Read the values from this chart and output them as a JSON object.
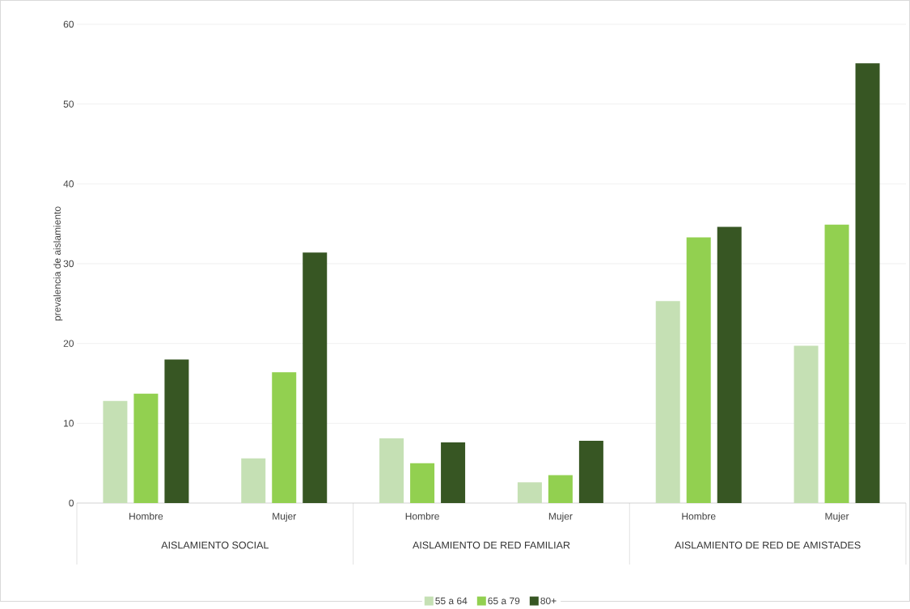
{
  "chart_data": {
    "type": "bar",
    "ylabel": "prevalencia de aislamiento",
    "categories": [
      "Hombre",
      "Mujer",
      "Hombre",
      "Mujer",
      "Hombre",
      "Mujer"
    ],
    "annotations": [
      "AISLAMIENTO SOCIAL",
      "AISLAMIENTO DE RED FAMILIAR",
      "AISLAMIENTO DE RED DE AMISTADES"
    ],
    "series": [
      {
        "name": "55 a 64",
        "color": "#c5e0b4",
        "values": [
          12.8,
          5.6,
          8.1,
          2.6,
          25.3,
          19.7
        ]
      },
      {
        "name": "65 a 79",
        "color": "#92d050",
        "values": [
          13.7,
          16.4,
          5.0,
          3.5,
          33.3,
          34.9
        ]
      },
      {
        "name": "80+",
        "color": "#375623",
        "values": [
          18.0,
          31.4,
          7.6,
          7.8,
          34.6,
          55.1
        ]
      }
    ],
    "ylim": [
      0,
      60
    ],
    "yticks": [
      0,
      10,
      20,
      30,
      40,
      50,
      60
    ],
    "grid": "y",
    "legend": "bottom"
  }
}
